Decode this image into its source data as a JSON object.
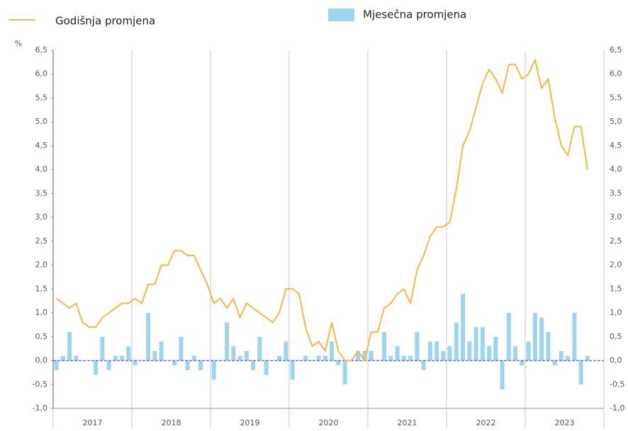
{
  "chart_data": {
    "type": "line_bar",
    "y_label": "%",
    "year_labels": [
      "2017",
      "2018",
      "2019",
      "2020",
      "2021",
      "2022",
      "2023"
    ],
    "ylim": [
      -1.0,
      6.5
    ],
    "yticks": [
      {
        "value": -1.0,
        "label": "-1,0"
      },
      {
        "value": -0.5,
        "label": "-0,5"
      },
      {
        "value": 0.0,
        "label": "0,0"
      },
      {
        "value": 0.5,
        "label": "0,5"
      },
      {
        "value": 1.0,
        "label": "1,0"
      },
      {
        "value": 1.5,
        "label": "1,5"
      },
      {
        "value": 2.0,
        "label": "2,0"
      },
      {
        "value": 2.5,
        "label": "2,5"
      },
      {
        "value": 3.0,
        "label": "3,0"
      },
      {
        "value": 3.5,
        "label": "3,5"
      },
      {
        "value": 4.0,
        "label": "4,0"
      },
      {
        "value": 4.5,
        "label": "4,5"
      },
      {
        "value": 5.0,
        "label": "5,0"
      },
      {
        "value": 5.5,
        "label": "5,5"
      },
      {
        "value": 6.0,
        "label": "6,0"
      },
      {
        "value": 6.5,
        "label": "6,5"
      }
    ],
    "series": [
      {
        "name": "Godišnja promjena",
        "type": "line",
        "color": "#f7b744",
        "values": [
          1.3,
          1.2,
          1.1,
          1.2,
          0.8,
          0.7,
          0.7,
          0.9,
          1.0,
          1.1,
          1.2,
          1.2,
          1.3,
          1.2,
          1.6,
          1.6,
          2.0,
          2.0,
          2.3,
          2.3,
          2.2,
          2.2,
          1.9,
          1.6,
          1.2,
          1.3,
          1.1,
          1.3,
          0.9,
          1.2,
          1.1,
          1.0,
          0.9,
          0.8,
          1.0,
          1.5,
          1.5,
          1.4,
          0.7,
          0.3,
          0.4,
          0.2,
          0.8,
          0.2,
          0.0,
          0.0,
          0.2,
          0.0,
          0.6,
          0.6,
          1.1,
          1.2,
          1.4,
          1.5,
          1.2,
          1.9,
          2.2,
          2.6,
          2.8,
          2.8,
          2.9,
          3.6,
          4.5,
          4.8,
          5.3,
          5.8,
          6.1,
          5.9,
          5.6,
          6.2,
          6.2,
          5.9,
          6.0,
          6.3,
          5.7,
          5.9,
          5.1,
          4.5,
          4.3,
          4.9,
          4.9,
          4.0
        ]
      },
      {
        "name": "Mjesečna promjena",
        "type": "bar",
        "color": "#9dd5ee",
        "values": [
          -0.2,
          0.1,
          0.6,
          0.1,
          0.0,
          0.0,
          -0.3,
          0.5,
          -0.2,
          0.1,
          0.1,
          0.3,
          -0.1,
          0.0,
          1.0,
          0.2,
          0.4,
          0.0,
          -0.1,
          0.5,
          -0.2,
          0.1,
          -0.2,
          0.0,
          -0.4,
          0.0,
          0.8,
          0.3,
          0.1,
          0.2,
          -0.2,
          0.5,
          -0.3,
          0.0,
          0.1,
          0.4,
          -0.4,
          0.0,
          0.1,
          0.0,
          0.1,
          0.1,
          0.4,
          -0.1,
          -0.5,
          0.0,
          0.2,
          0.2,
          0.2,
          0.0,
          0.6,
          0.1,
          0.3,
          0.1,
          0.1,
          0.6,
          -0.2,
          0.4,
          0.4,
          0.2,
          0.3,
          0.8,
          1.4,
          0.4,
          0.7,
          0.7,
          0.3,
          0.5,
          -0.6,
          1.0,
          0.3,
          -0.1,
          0.4,
          1.0,
          0.9,
          0.6,
          -0.1,
          0.2,
          0.1,
          1.0,
          -0.5,
          0.1
        ]
      }
    ]
  }
}
